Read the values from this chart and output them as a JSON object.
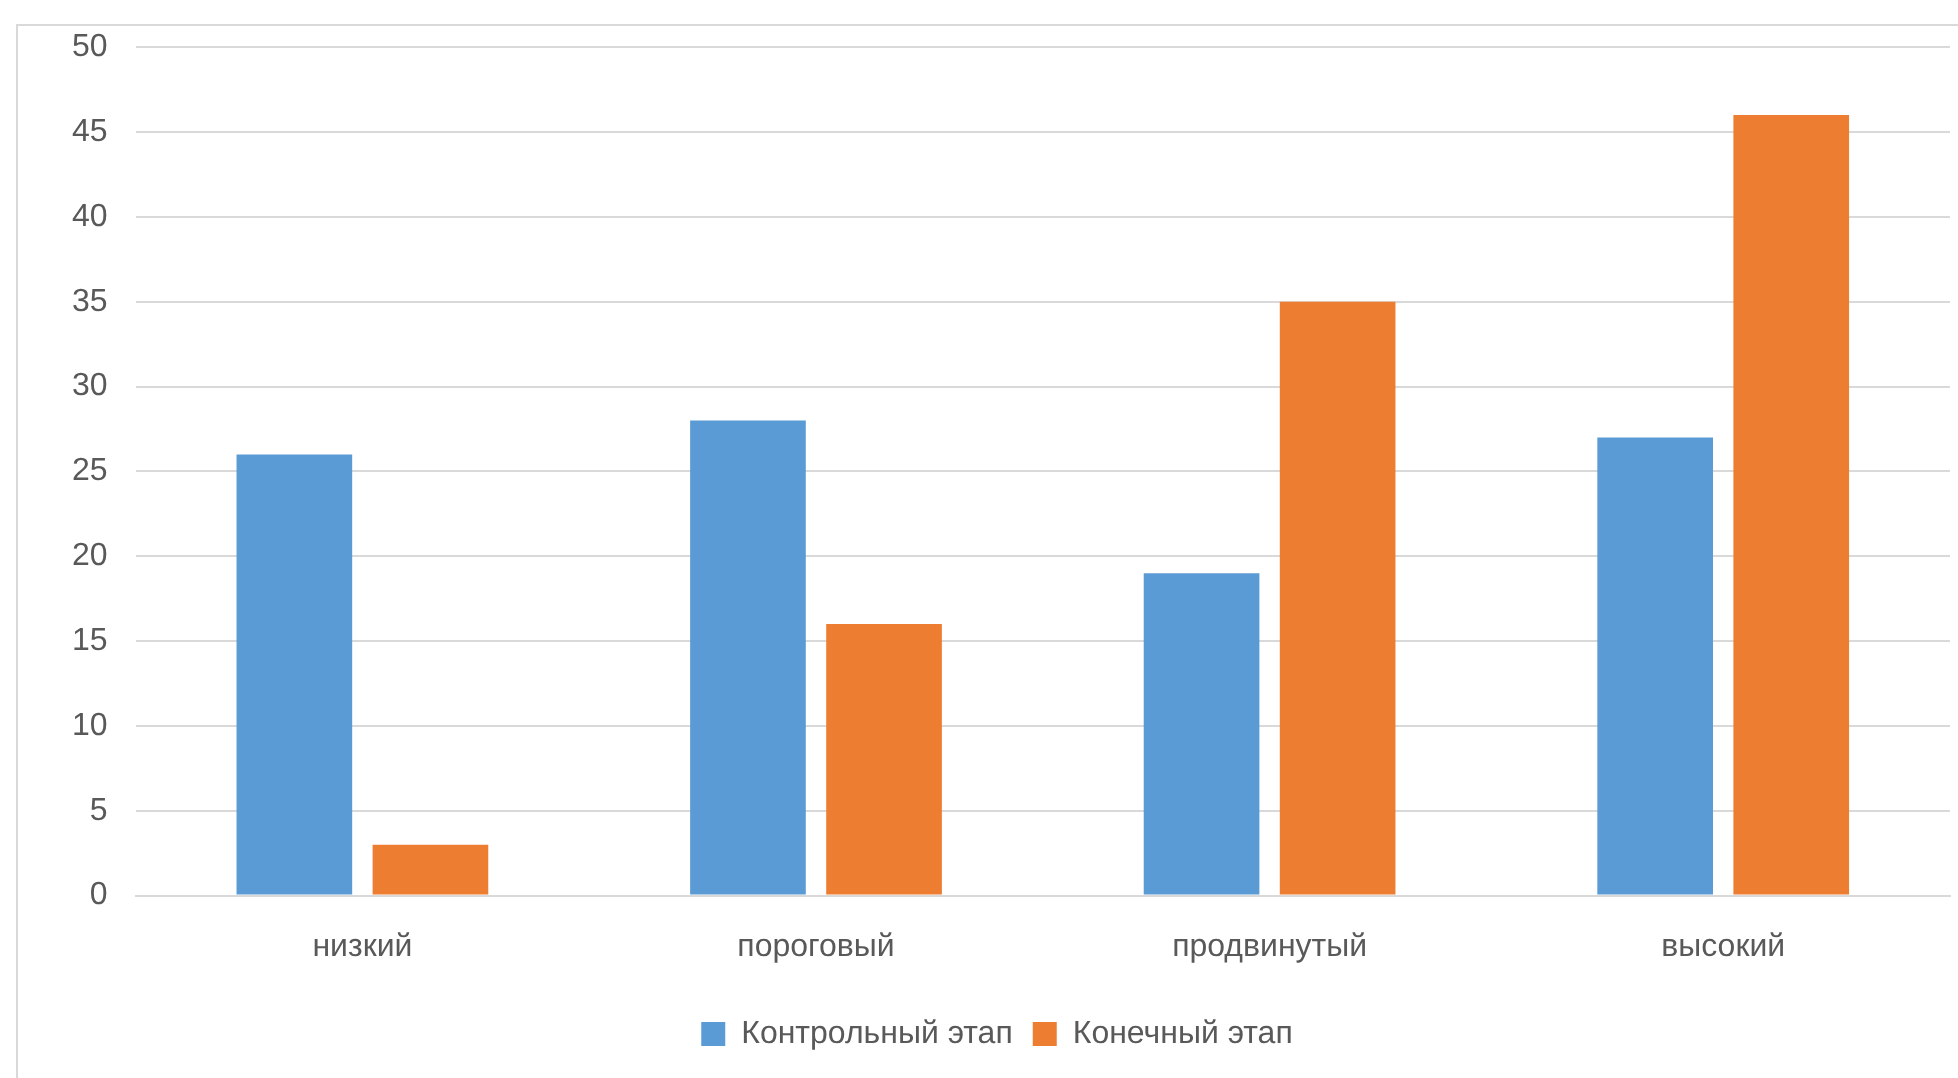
{
  "chart_data": {
    "type": "bar",
    "categories": [
      "низкий",
      "пороговый",
      "продвинутый",
      "высокий"
    ],
    "series": [
      {
        "name": "Контрольный этап",
        "color": "#5b9bd5",
        "values": [
          26,
          28,
          19,
          27
        ]
      },
      {
        "name": "Конечный этап",
        "color": "#ed7d31",
        "values": [
          3,
          16,
          35,
          46
        ]
      }
    ],
    "ylim": [
      0,
      50
    ],
    "yticks": [
      0,
      5,
      10,
      15,
      20,
      25,
      30,
      35,
      40,
      45,
      50
    ],
    "grid": "y",
    "legend": "bottom"
  }
}
